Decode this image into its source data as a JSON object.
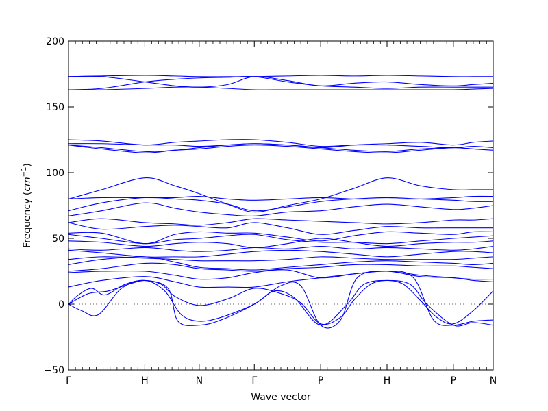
{
  "chart_data": {
    "type": "line",
    "title": "",
    "xlabel": "Wave vector",
    "ylabel_prefix": "Frequency (",
    "ylabel_unit": "cm",
    "ylabel_exp": "−1",
    "ylabel_suffix": ")",
    "ylim": [
      -50,
      200
    ],
    "yticks": [
      -50,
      0,
      50,
      100,
      150,
      200
    ],
    "ytick_labels": [
      "−50",
      "0",
      "50",
      "100",
      "150",
      "200"
    ],
    "xlim": [
      0,
      6.4
    ],
    "high_symmetry_points": [
      {
        "label": "Γ",
        "x": 0
      },
      {
        "label": "H",
        "x": 1.15
      },
      {
        "label": "N",
        "x": 1.97
      },
      {
        "label": "Γ",
        "x": 2.8
      },
      {
        "label": "P",
        "x": 3.8
      },
      {
        "label": "H",
        "x": 4.8
      },
      {
        "label": "P",
        "x": 5.8
      },
      {
        "label": "N",
        "x": 6.4
      }
    ],
    "zero_line": 0,
    "line_color": "#0000ff",
    "grid": false,
    "series": [
      {
        "x": [
          0,
          0.5,
          1.15,
          1.6,
          1.97,
          2.4,
          2.8,
          3.3,
          3.8,
          4.3,
          4.8,
          5.3,
          5.8,
          6.1,
          6.4
        ],
        "y": [
          173,
          173,
          169,
          166,
          165,
          167,
          173,
          170,
          166,
          168,
          169,
          167,
          166,
          167,
          168
        ]
      },
      {
        "x": [
          0,
          0.5,
          1.15,
          1.6,
          1.97,
          2.4,
          2.8,
          3.3,
          3.8,
          4.3,
          4.8,
          5.3,
          5.8,
          6.1,
          6.4
        ],
        "y": [
          173,
          173.5,
          174,
          173.5,
          173,
          173,
          173,
          173.5,
          174,
          173.5,
          174,
          173.5,
          173,
          173,
          173
        ]
      },
      {
        "x": [
          0,
          0.5,
          1.15,
          1.6,
          1.97,
          2.4,
          2.8,
          3.3,
          3.8,
          4.3,
          4.8,
          5.3,
          5.8,
          6.1,
          6.4
        ],
        "y": [
          163,
          164,
          169,
          171,
          172,
          172.5,
          173,
          169,
          166,
          165,
          164,
          165,
          165,
          165,
          165
        ]
      },
      {
        "x": [
          0,
          0.5,
          1.15,
          1.6,
          1.97,
          2.4,
          2.8,
          3.3,
          3.8,
          4.3,
          4.8,
          5.3,
          5.8,
          6.1,
          6.4
        ],
        "y": [
          163,
          163,
          164,
          165,
          165,
          164,
          163,
          163,
          163,
          163,
          163,
          163,
          163,
          163.5,
          164
        ]
      },
      {
        "x": [
          0,
          0.5,
          1.15,
          1.6,
          1.97,
          2.4,
          2.8,
          3.3,
          3.8,
          4.3,
          4.8,
          5.3,
          5.8,
          6.1,
          6.4
        ],
        "y": [
          125,
          124,
          121,
          123,
          124,
          125,
          125,
          123,
          120,
          121,
          121,
          120,
          119,
          120,
          119
        ]
      },
      {
        "x": [
          0,
          0.5,
          1.15,
          1.6,
          1.97,
          2.4,
          2.8,
          3.3,
          3.8,
          4.3,
          4.8,
          5.3,
          5.8,
          6.1,
          6.4
        ],
        "y": [
          122,
          122,
          121,
          121,
          120,
          121,
          122,
          121,
          119,
          121,
          122,
          123,
          121,
          123,
          124
        ]
      },
      {
        "x": [
          0,
          0.5,
          1.15,
          1.6,
          1.97,
          2.4,
          2.8,
          3.3,
          3.8,
          4.3,
          4.8,
          5.3,
          5.8,
          6.1,
          6.4
        ],
        "y": [
          121,
          119,
          116,
          117,
          119,
          121,
          122,
          121,
          119,
          117,
          116,
          118,
          119,
          118,
          118
        ]
      },
      {
        "x": [
          0,
          0.5,
          1.15,
          1.6,
          1.97,
          2.4,
          2.8,
          3.3,
          3.8,
          4.3,
          4.8,
          5.3,
          5.8,
          6.1,
          6.4
        ],
        "y": [
          121,
          118,
          115,
          117,
          118,
          120,
          121,
          120,
          118,
          116,
          115,
          117,
          119,
          118,
          117
        ]
      },
      {
        "x": [
          0,
          0.5,
          1.15,
          1.6,
          1.97,
          2.4,
          2.8,
          3.3,
          3.8,
          4.3,
          4.8,
          5.3,
          5.8,
          6.1,
          6.4
        ],
        "y": [
          80,
          87,
          96,
          90,
          84,
          76,
          70,
          75,
          80,
          88,
          96,
          90,
          87,
          87,
          87
        ]
      },
      {
        "x": [
          0,
          0.5,
          1.15,
          1.6,
          1.97,
          2.4,
          2.8,
          3.3,
          3.8,
          4.3,
          4.8,
          5.3,
          5.8,
          6.1,
          6.4
        ],
        "y": [
          80,
          81,
          81,
          81,
          82,
          80,
          79,
          80,
          81,
          80,
          80,
          80,
          81,
          82,
          82
        ]
      },
      {
        "x": [
          0,
          0.5,
          1.15,
          1.6,
          1.97,
          2.4,
          2.8,
          3.3,
          3.8,
          4.3,
          4.8,
          5.3,
          5.8,
          6.1,
          6.4
        ],
        "y": [
          71,
          77,
          81,
          80,
          79,
          76,
          71,
          74,
          78,
          80,
          81,
          80,
          79,
          78,
          78
        ]
      },
      {
        "x": [
          0,
          0.5,
          1.15,
          1.6,
          1.97,
          2.4,
          2.8,
          3.3,
          3.8,
          4.3,
          4.8,
          5.3,
          5.8,
          6.1,
          6.4
        ],
        "y": [
          67,
          71,
          77,
          73,
          70,
          68,
          67,
          70,
          71,
          74,
          76,
          74,
          72,
          73,
          75
        ]
      },
      {
        "x": [
          0,
          0.5,
          1.15,
          1.6,
          1.97,
          2.4,
          2.8,
          3.3,
          3.8,
          4.3,
          4.8,
          5.3,
          5.8,
          6.1,
          6.4
        ],
        "y": [
          62,
          65,
          62,
          61,
          60,
          62,
          65,
          64,
          63,
          62,
          61,
          62,
          64,
          64,
          65
        ]
      },
      {
        "x": [
          0,
          0.5,
          1.15,
          1.6,
          1.97,
          2.4,
          2.8,
          3.3,
          3.8,
          4.3,
          4.8,
          5.3,
          5.8,
          6.1,
          6.4
        ],
        "y": [
          62,
          57,
          59,
          60,
          59,
          58,
          62,
          58,
          53,
          56,
          59,
          58,
          58,
          58,
          58
        ]
      },
      {
        "x": [
          0,
          0.5,
          1.15,
          1.6,
          1.97,
          2.4,
          2.8,
          3.3,
          3.8,
          4.3,
          4.8,
          5.3,
          5.8,
          6.1,
          6.4
        ],
        "y": [
          54,
          54,
          46,
          53,
          55,
          54,
          54,
          51,
          48,
          52,
          55,
          54,
          53,
          55,
          55
        ]
      },
      {
        "x": [
          0,
          0.5,
          1.15,
          1.6,
          1.97,
          2.4,
          2.8,
          3.3,
          3.8,
          4.3,
          4.8,
          5.3,
          5.8,
          6.1,
          6.4
        ],
        "y": [
          53,
          50,
          46,
          49,
          50,
          52,
          53,
          49,
          47,
          47,
          46,
          48,
          50,
          51,
          52
        ]
      },
      {
        "x": [
          0,
          0.5,
          1.15,
          1.6,
          1.97,
          2.4,
          2.8,
          3.3,
          3.8,
          4.3,
          4.8,
          5.3,
          5.8,
          6.1,
          6.4
        ],
        "y": [
          48,
          47,
          44,
          46,
          47,
          46,
          43,
          46,
          50,
          47,
          44,
          46,
          47,
          47,
          48
        ]
      },
      {
        "x": [
          0,
          0.5,
          1.15,
          1.6,
          1.97,
          2.4,
          2.8,
          3.3,
          3.8,
          4.3,
          4.8,
          5.3,
          5.8,
          6.1,
          6.4
        ],
        "y": [
          42,
          41,
          43,
          41,
          40,
          41,
          43,
          42,
          44,
          42,
          43,
          42,
          41,
          42,
          44
        ]
      },
      {
        "x": [
          0,
          0.5,
          1.15,
          1.6,
          1.97,
          2.4,
          2.8,
          3.3,
          3.8,
          4.3,
          4.8,
          5.3,
          5.8,
          6.1,
          6.4
        ],
        "y": [
          41,
          39,
          36,
          36,
          36,
          38,
          40,
          41,
          40,
          38,
          36,
          38,
          40,
          40,
          39
        ]
      },
      {
        "x": [
          0,
          0.5,
          1.15,
          1.6,
          1.97,
          2.4,
          2.8,
          3.3,
          3.8,
          4.3,
          4.8,
          5.3,
          5.8,
          6.1,
          6.4
        ],
        "y": [
          34,
          36,
          35,
          34,
          33,
          33,
          33,
          34,
          36,
          35,
          34,
          34,
          34,
          35,
          36
        ]
      },
      {
        "x": [
          0,
          0.5,
          1.15,
          1.6,
          1.97,
          2.4,
          2.8,
          3.3,
          3.8,
          4.3,
          4.8,
          5.3,
          5.8,
          6.1,
          6.4
        ],
        "y": [
          30,
          34,
          36,
          32,
          28,
          27,
          26,
          28,
          30,
          32,
          33,
          32,
          31,
          30,
          31
        ]
      },
      {
        "x": [
          0,
          0.5,
          1.15,
          1.6,
          1.97,
          2.4,
          2.8,
          3.3,
          3.8,
          4.3,
          4.8,
          5.3,
          5.8,
          6.1,
          6.4
        ],
        "y": [
          25,
          27,
          31,
          30,
          27,
          26,
          25,
          27,
          28,
          30,
          30,
          29,
          29,
          28,
          27
        ]
      },
      {
        "x": [
          0,
          0.5,
          1.15,
          1.6,
          1.97,
          2.4,
          2.8,
          3.3,
          3.8,
          4.3,
          4.8,
          5.3,
          5.8,
          6.1,
          6.4
        ],
        "y": [
          24,
          25,
          25,
          22,
          19,
          20,
          24,
          26,
          20,
          23,
          25,
          22,
          20,
          19,
          19
        ]
      },
      {
        "x": [
          0,
          0.5,
          1.15,
          1.6,
          1.97,
          2.4,
          2.8,
          3.3,
          3.8,
          4.3,
          4.8,
          5.3,
          5.8,
          6.1,
          6.4
        ],
        "y": [
          13,
          18,
          21,
          17,
          13,
          13,
          13,
          17,
          20,
          23,
          25,
          21,
          20,
          18,
          17
        ]
      },
      {
        "x": [
          0,
          0.3,
          0.6,
          0.9,
          1.15,
          1.4,
          1.6,
          1.97,
          2.4,
          2.8,
          3.2,
          3.5,
          3.8,
          4.1,
          4.3,
          4.55,
          4.8,
          5.05,
          5.3,
          5.55,
          5.8,
          6.1,
          6.4
        ],
        "y": [
          0,
          8,
          10,
          15,
          18,
          15,
          6,
          -1,
          4,
          12,
          8,
          1,
          -15,
          -10,
          3,
          15,
          18,
          15,
          3,
          -10,
          -15,
          -5,
          10
        ]
      },
      {
        "x": [
          0,
          0.2,
          0.45,
          0.8,
          1.15,
          1.45,
          1.7,
          1.97,
          2.3,
          2.8,
          3.1,
          3.4,
          3.8,
          4.2,
          4.45,
          4.8,
          5.15,
          5.4,
          5.8,
          6.1,
          6.4
        ],
        "y": [
          0,
          -5,
          -8,
          12,
          18,
          10,
          -8,
          -13,
          -10,
          0,
          10,
          5,
          -16,
          0,
          15,
          18,
          15,
          0,
          -16,
          -14,
          -16
        ]
      },
      {
        "x": [
          0,
          0.15,
          0.35,
          0.55,
          0.85,
          1.15,
          1.5,
          1.65,
          1.97,
          2.3,
          2.8,
          3.2,
          3.5,
          3.8,
          4.1,
          4.35,
          4.8,
          5.2,
          5.5,
          5.8,
          6.1,
          6.4
        ],
        "y": [
          0,
          7,
          12,
          7,
          15,
          18,
          12,
          -13,
          -16,
          -12,
          0,
          14,
          14,
          -16,
          -12,
          20,
          25,
          20,
          -12,
          -16,
          -13,
          -12
        ]
      }
    ]
  }
}
